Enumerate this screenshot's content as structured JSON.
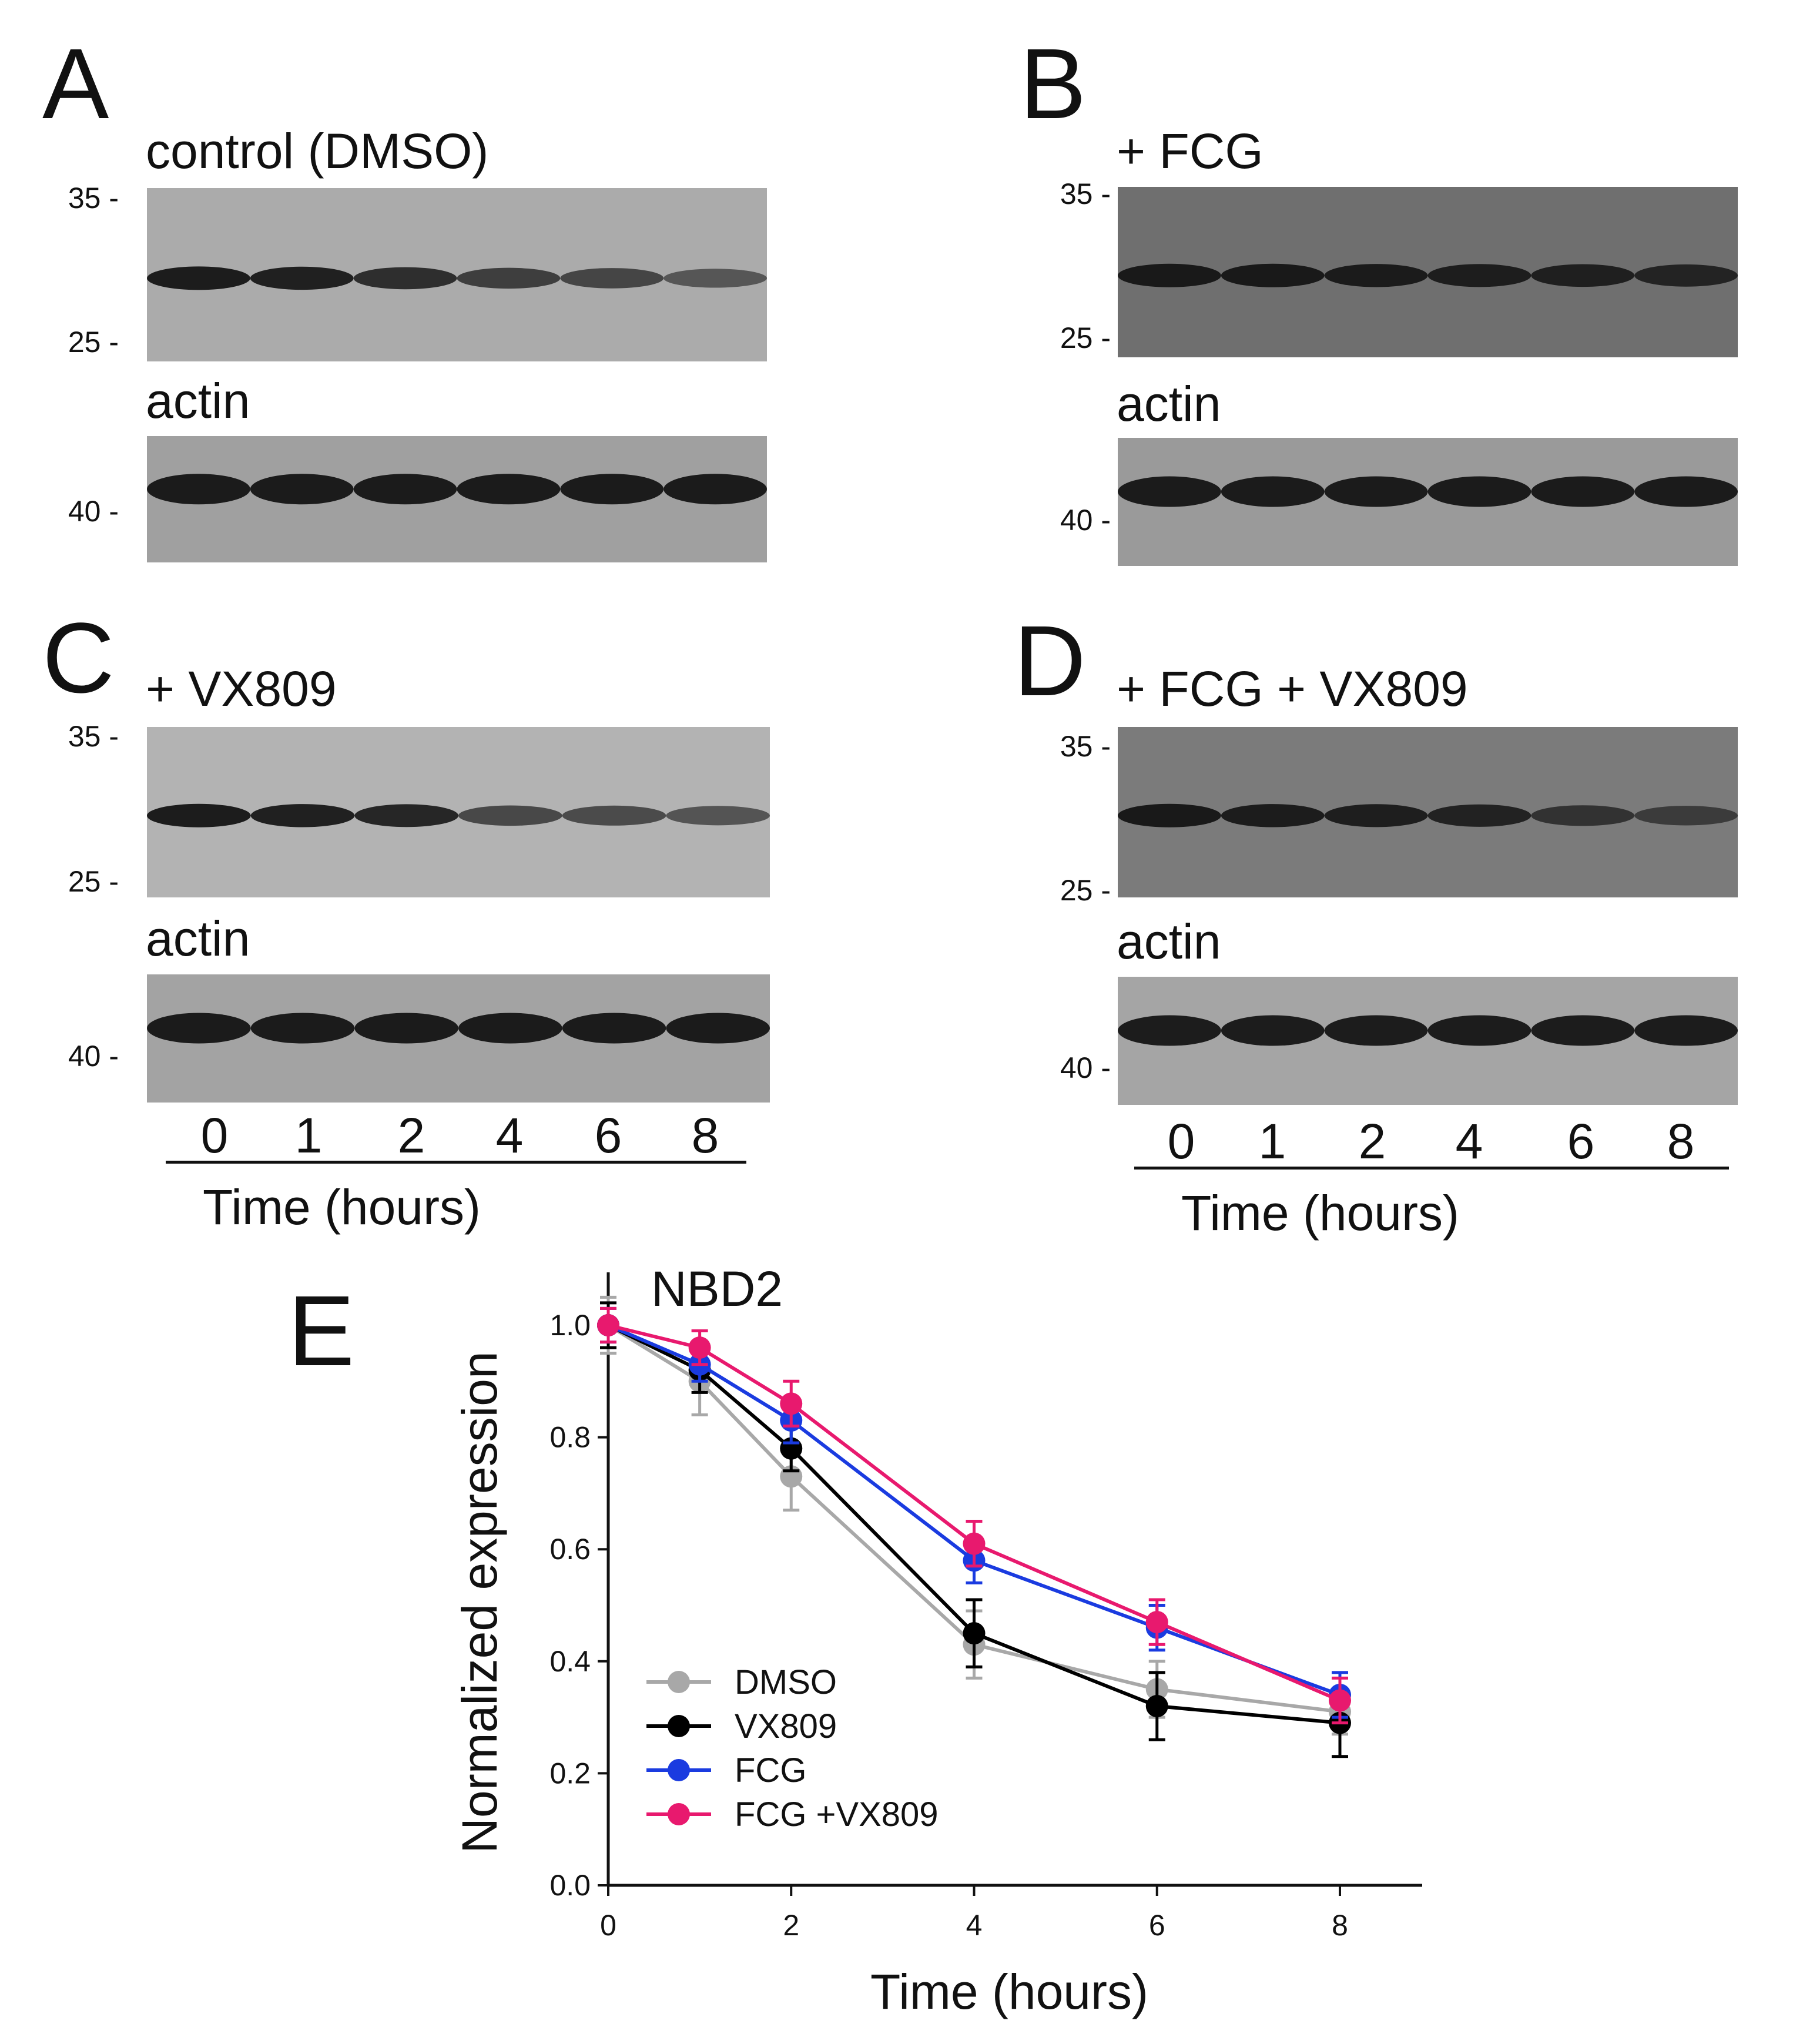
{
  "panels": {
    "A": {
      "letter": "A",
      "title": "control (DMSO)",
      "mw_top": [
        "35 -",
        "25 -"
      ],
      "actin_label": "actin",
      "mw_actin": "40 -"
    },
    "B": {
      "letter": "B",
      "title": "+ FCG",
      "mw_top": [
        "35 -",
        "25 -"
      ],
      "actin_label": "actin",
      "mw_actin": "40 -"
    },
    "C": {
      "letter": "C",
      "title": "+ VX809",
      "mw_top": [
        "35 -",
        "25 -"
      ],
      "actin_label": "actin",
      "mw_actin": "40 -"
    },
    "D": {
      "letter": "D",
      "title": "+ FCG + VX809",
      "mw_top": [
        "35 -",
        "25 -"
      ],
      "actin_label": "actin",
      "mw_actin": "40 -"
    },
    "E": {
      "letter": "E"
    }
  },
  "time_axis": {
    "lanes": [
      "0",
      "1",
      "2",
      "4",
      "6",
      "8"
    ],
    "label": "Time (hours)"
  },
  "band_intensity": {
    "A": [
      1.0,
      0.95,
      0.8,
      0.62,
      0.55,
      0.35
    ],
    "B": [
      1.0,
      1.0,
      0.95,
      0.92,
      0.88,
      0.82
    ],
    "C": [
      1.0,
      0.95,
      0.9,
      0.55,
      0.5,
      0.42
    ],
    "D": [
      1.0,
      0.95,
      0.92,
      0.85,
      0.6,
      0.45
    ]
  },
  "chart_data": {
    "type": "line",
    "title": "NBD2",
    "xlabel": "Time (hours)",
    "ylabel": "Normalized expression",
    "xlim": [
      0,
      8
    ],
    "ylim": [
      0.0,
      1.0
    ],
    "xticks": [
      "0",
      "2",
      "4",
      "6",
      "8"
    ],
    "yticks": [
      "0.0",
      "0.2",
      "0.4",
      "0.6",
      "0.8",
      "1.0"
    ],
    "x": [
      0,
      1,
      2,
      4,
      6,
      8
    ],
    "legend_position": "bottom-left",
    "series": [
      {
        "name": "DMSO",
        "color": "#a8a8a8",
        "values": [
          1.0,
          0.9,
          0.73,
          0.43,
          0.35,
          0.31
        ],
        "errors": [
          0.05,
          0.06,
          0.06,
          0.06,
          0.05,
          0.04
        ]
      },
      {
        "name": "VX809",
        "color": "#000000",
        "values": [
          1.0,
          0.92,
          0.78,
          0.45,
          0.32,
          0.29
        ],
        "errors": [
          0.04,
          0.04,
          0.04,
          0.06,
          0.06,
          0.06
        ]
      },
      {
        "name": "FCG",
        "color": "#1a3be0",
        "values": [
          1.0,
          0.93,
          0.83,
          0.58,
          0.46,
          0.34
        ],
        "errors": [
          0.03,
          0.03,
          0.04,
          0.04,
          0.04,
          0.04
        ]
      },
      {
        "name": "FCG +VX809",
        "color": "#e8196e",
        "values": [
          1.0,
          0.96,
          0.86,
          0.61,
          0.47,
          0.33
        ],
        "errors": [
          0.03,
          0.03,
          0.04,
          0.04,
          0.04,
          0.04
        ]
      }
    ]
  }
}
